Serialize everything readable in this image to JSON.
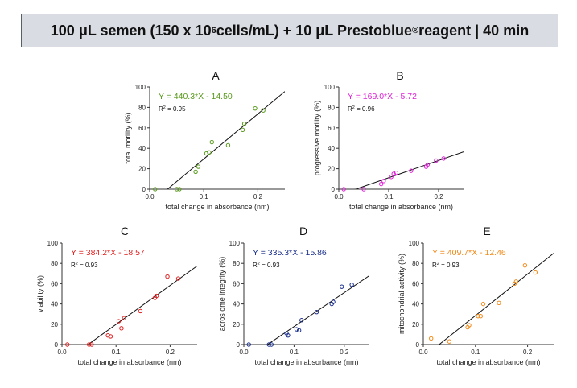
{
  "header": {
    "title_pre": "100 μL semen (150 x 10",
    "title_sup": "6",
    "title_mid": " cells/mL) + 10 μL Prestoblue",
    "title_reg": "®",
    "title_post": " reagent | 40 min"
  },
  "chart_data": [
    {
      "type": "scatter",
      "letter": "A",
      "xlabel": "total change in absorbance (nm)",
      "ylabel": "total motility (%)",
      "xlim": [
        0,
        0.25
      ],
      "ylim": [
        0,
        100
      ],
      "xticks": [
        0,
        0.1,
        0.2
      ],
      "xtick_labels": [
        "0.0",
        "0.1",
        "0.2"
      ],
      "yticks": [
        0,
        20,
        40,
        60,
        80,
        100
      ],
      "ytick_labels": [
        "0",
        "20",
        "40",
        "60",
        "80",
        "100"
      ],
      "equation": "Y = 440.3*X - 14.50",
      "r2_label": "R",
      "r2_value": " = 0.95",
      "color": "#5a9a1e",
      "fit": {
        "slope": 440.3,
        "intercept": -14.5
      },
      "points": [
        [
          0.01,
          0
        ],
        [
          0.05,
          0
        ],
        [
          0.055,
          0
        ],
        [
          0.085,
          17
        ],
        [
          0.09,
          22
        ],
        [
          0.105,
          35
        ],
        [
          0.11,
          36
        ],
        [
          0.115,
          46
        ],
        [
          0.145,
          43
        ],
        [
          0.172,
          58
        ],
        [
          0.175,
          64
        ],
        [
          0.195,
          79
        ],
        [
          0.21,
          77
        ]
      ]
    },
    {
      "type": "scatter",
      "letter": "B",
      "xlabel": "total change in absorbance (nm)",
      "ylabel": "progressive motility (%)",
      "xlim": [
        0,
        0.25
      ],
      "ylim": [
        0,
        100
      ],
      "xticks": [
        0,
        0.1,
        0.2
      ],
      "xtick_labels": [
        "0.0",
        "0.1",
        "0.2"
      ],
      "yticks": [
        0,
        20,
        40,
        60,
        80,
        100
      ],
      "ytick_labels": [
        "0",
        "20",
        "40",
        "60",
        "80",
        "100"
      ],
      "equation": "Y = 169.0*X - 5.72",
      "r2_label": "R",
      "r2_value": " = 0.96",
      "color": "#e020d8",
      "fit": {
        "slope": 169.0,
        "intercept": -5.72
      },
      "points": [
        [
          0.01,
          0
        ],
        [
          0.05,
          0
        ],
        [
          0.085,
          5
        ],
        [
          0.09,
          8
        ],
        [
          0.105,
          12
        ],
        [
          0.11,
          15
        ],
        [
          0.115,
          16
        ],
        [
          0.145,
          18
        ],
        [
          0.175,
          22
        ],
        [
          0.178,
          24
        ],
        [
          0.195,
          28
        ],
        [
          0.21,
          30
        ]
      ]
    },
    {
      "type": "scatter",
      "letter": "C",
      "xlabel": "total change in absorbance (nm)",
      "ylabel": "viability (%)",
      "xlim": [
        0,
        0.25
      ],
      "ylim": [
        0,
        100
      ],
      "xticks": [
        0,
        0.1,
        0.2
      ],
      "xtick_labels": [
        "0.0",
        "0.1",
        "0.2"
      ],
      "yticks": [
        0,
        20,
        40,
        60,
        80,
        100
      ],
      "ytick_labels": [
        "0",
        "20",
        "40",
        "60",
        "80",
        "100"
      ],
      "equation": "Y = 384.2*X - 18.57",
      "r2_label": "R",
      "r2_value": " = 0.93",
      "color": "#e02020",
      "fit": {
        "slope": 384.2,
        "intercept": -18.57
      },
      "points": [
        [
          0.01,
          0
        ],
        [
          0.05,
          0
        ],
        [
          0.055,
          0
        ],
        [
          0.085,
          9
        ],
        [
          0.09,
          8
        ],
        [
          0.105,
          23
        ],
        [
          0.11,
          16
        ],
        [
          0.115,
          26
        ],
        [
          0.145,
          33
        ],
        [
          0.172,
          46
        ],
        [
          0.175,
          48
        ],
        [
          0.195,
          67
        ],
        [
          0.215,
          65
        ]
      ]
    },
    {
      "type": "scatter",
      "letter": "D",
      "xlabel": "total change in absorbance (nm)",
      "ylabel": "acros ome integrity (%)",
      "xlim": [
        0,
        0.25
      ],
      "ylim": [
        0,
        100
      ],
      "xticks": [
        0,
        0.1,
        0.2
      ],
      "xtick_labels": [
        "0.0",
        "0.1",
        "0.2"
      ],
      "yticks": [
        0,
        20,
        40,
        60,
        80,
        100
      ],
      "ytick_labels": [
        "0",
        "20",
        "40",
        "60",
        "80",
        "100"
      ],
      "equation": "Y = 335.3*X - 15.86",
      "r2_label": "R",
      "r2_value": " = 0.93",
      "color": "#1a2f8c",
      "fit": {
        "slope": 335.3,
        "intercept": -15.86
      },
      "points": [
        [
          0.01,
          0
        ],
        [
          0.05,
          0
        ],
        [
          0.055,
          0
        ],
        [
          0.085,
          11
        ],
        [
          0.088,
          9
        ],
        [
          0.105,
          15
        ],
        [
          0.11,
          14
        ],
        [
          0.115,
          24
        ],
        [
          0.145,
          32
        ],
        [
          0.175,
          40
        ],
        [
          0.178,
          42
        ],
        [
          0.195,
          57
        ],
        [
          0.215,
          59
        ]
      ]
    },
    {
      "type": "scatter",
      "letter": "E",
      "xlabel": "total change in absorbance (nm)",
      "ylabel": "mitochondrial activity (%)",
      "xlim": [
        0,
        0.25
      ],
      "ylim": [
        0,
        100
      ],
      "xticks": [
        0,
        0.1,
        0.2
      ],
      "xtick_labels": [
        "0.0",
        "0.1",
        "0.2"
      ],
      "yticks": [
        0,
        20,
        40,
        60,
        80,
        100
      ],
      "ytick_labels": [
        "0",
        "20",
        "40",
        "60",
        "80",
        "100"
      ],
      "equation": "Y = 409.7*X - 12.46",
      "r2_label": "R",
      "r2_value": " = 0.93",
      "color": "#f08a1a",
      "fit": {
        "slope": 409.7,
        "intercept": -12.46
      },
      "points": [
        [
          0.015,
          6
        ],
        [
          0.05,
          3
        ],
        [
          0.085,
          17
        ],
        [
          0.088,
          19
        ],
        [
          0.105,
          28
        ],
        [
          0.11,
          28
        ],
        [
          0.115,
          40
        ],
        [
          0.145,
          41
        ],
        [
          0.175,
          60
        ],
        [
          0.178,
          62
        ],
        [
          0.195,
          78
        ],
        [
          0.215,
          71
        ]
      ]
    }
  ]
}
